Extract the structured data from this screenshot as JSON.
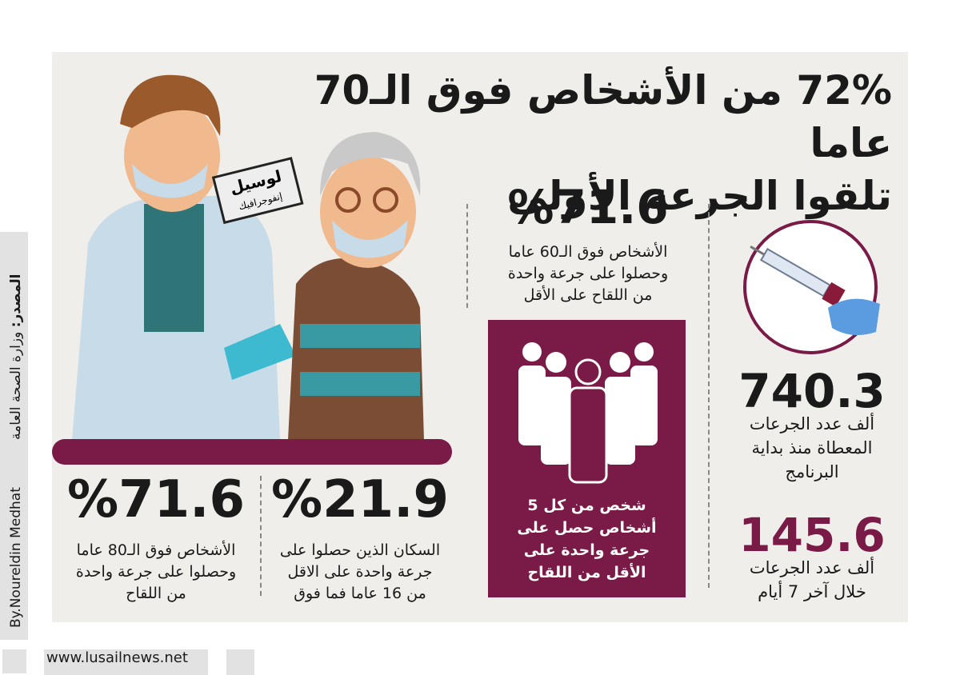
{
  "header": {
    "title_lines": [
      "72% من الأشخاص فوق الـ70 عاما",
      "تلقوا الجرعة الأولى"
    ]
  },
  "stamp": {
    "lines": [
      "لوسيل",
      "إنفوجرافيك"
    ]
  },
  "stats": [
    {
      "value": "%71.6",
      "lines": [
        "الأشخاص فوق الـ60 عاما",
        "وحصلوا على جرعة واحدة",
        "من اللقاح على الأقل"
      ]
    },
    {
      "value": "740.3",
      "lines": [
        "ألف عدد الجرعات",
        "المعطاة منذ بداية",
        "البرنامج"
      ]
    },
    {
      "value": "145.6",
      "lines": [
        "ألف عدد الجرعات",
        "خلال آخر 7 أيام"
      ]
    },
    {
      "value": "%21.9",
      "lines": [
        "السكان الذين حصلوا على",
        "جرعة واحدة على الاقل",
        "من 16 عاما فما فوق"
      ]
    },
    {
      "value": "%71.6",
      "lines": [
        "الأشخاص فوق الـ80 عاما",
        "وحصلوا على جرعة واحدة",
        "من اللقاح"
      ]
    }
  ],
  "highlight": {
    "lines": [
      "شخص من كل 5",
      "أشخاص حصل على",
      "جرعة واحدة على",
      "الأقل من اللقاح"
    ]
  },
  "sidebar": {
    "source_label": "المصدر:",
    "source": "وزارة الصحة العامة",
    "author": "By.Noureldin Medhat"
  },
  "footer": {
    "url": "www.lusailnews.net"
  }
}
